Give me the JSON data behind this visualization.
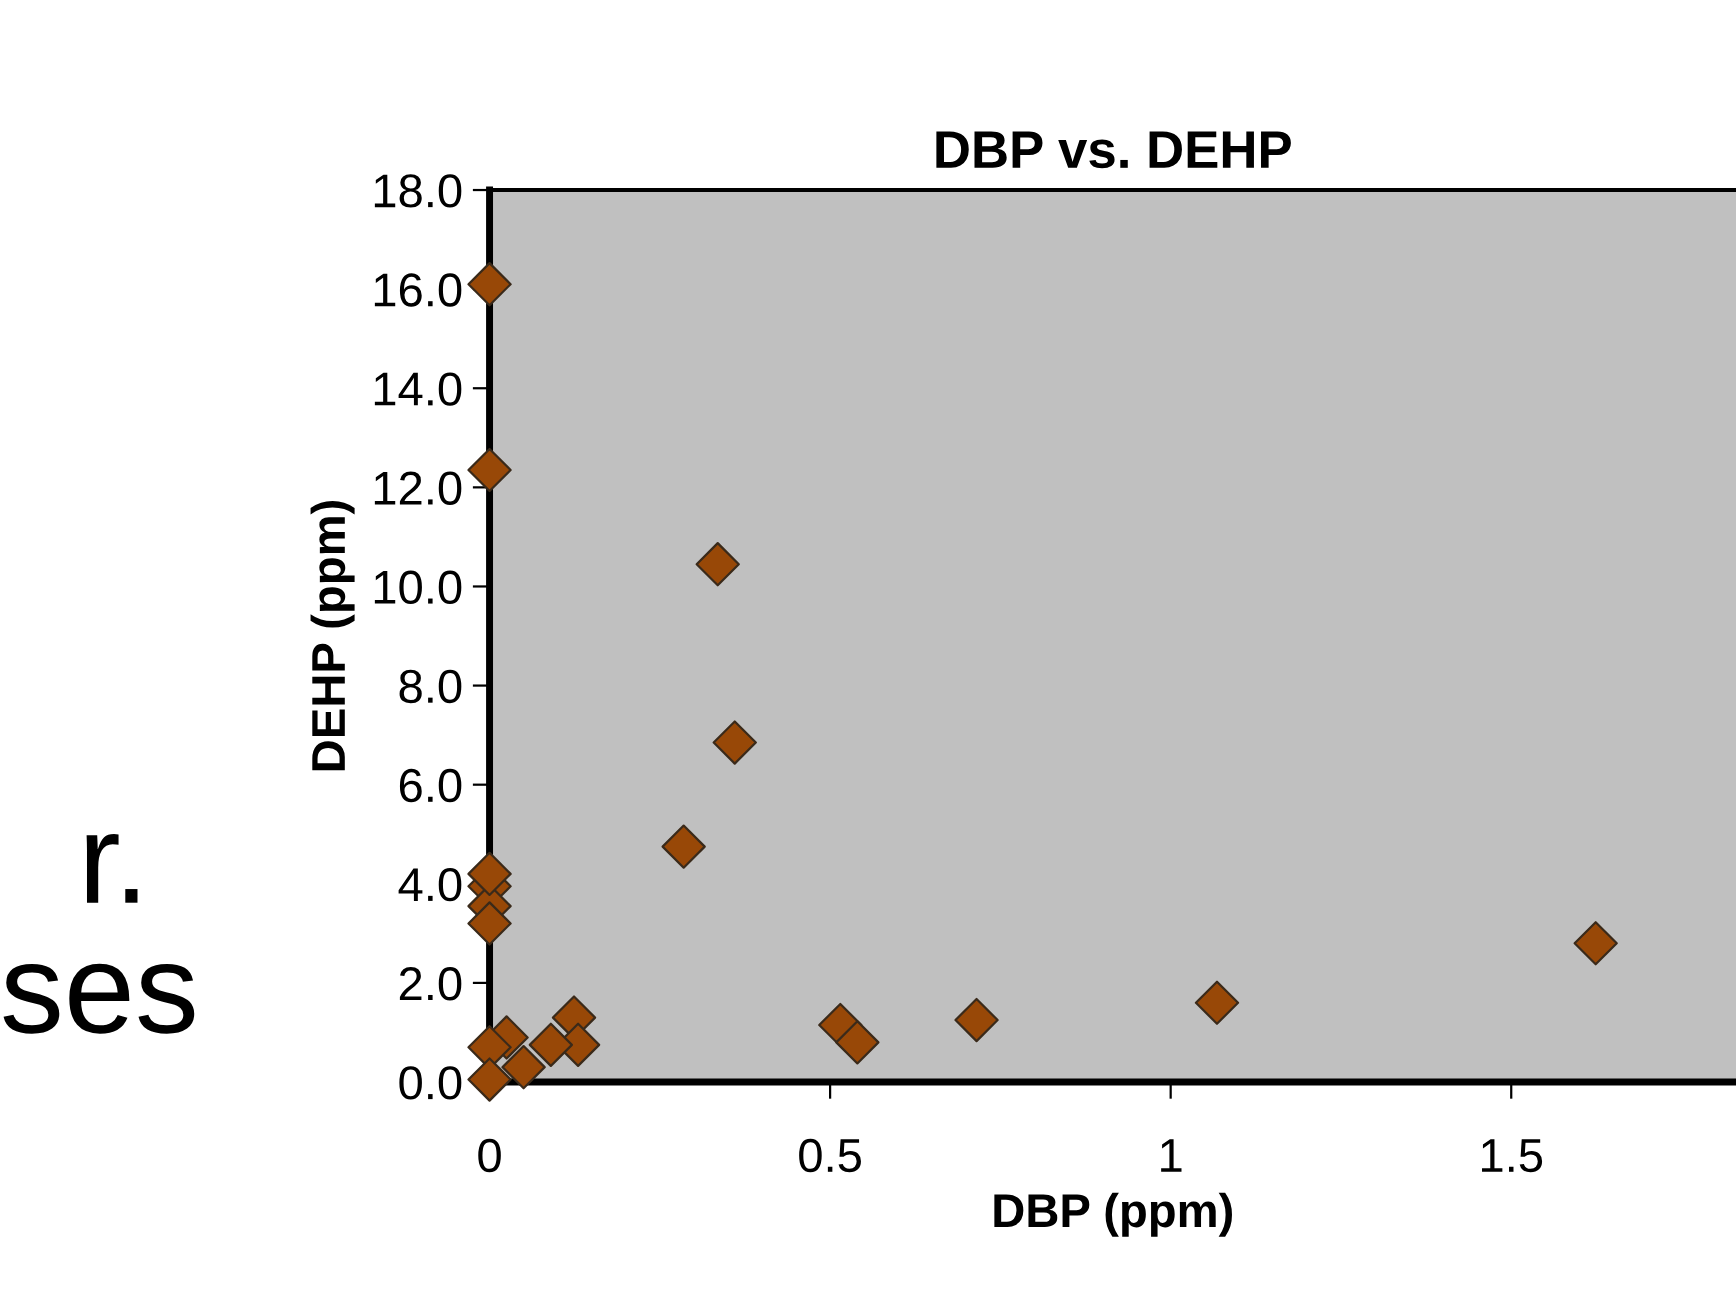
{
  "chart_data": {
    "type": "scatter",
    "title": "DBP vs. DEHP",
    "xlabel": "DBP (ppm)",
    "ylabel": "DEHP (ppm)",
    "x": [
      0,
      0,
      0.335,
      0.36,
      0.285,
      0,
      0,
      0,
      1.624,
      1.068,
      0.715,
      0.515,
      0.54,
      0.124,
      0.13,
      0.09,
      0.025,
      0,
      0.05,
      0,
      0
    ],
    "series": [
      {
        "color": "#984807",
        "values": [
          16.1,
          12.35,
          10.45,
          6.85,
          4.75,
          3.95,
          3.55,
          3.2,
          2.8,
          1.6,
          1.25,
          1.15,
          0.8,
          1.3,
          0.75,
          0.75,
          0.9,
          0.7,
          0.3,
          0.05,
          4.2
        ]
      }
    ],
    "marker": "diamond",
    "grid": false,
    "legend": false,
    "xlim": [
      0,
      1.83
    ],
    "xticks": [
      0,
      0.5,
      1,
      1.5
    ],
    "ylim": [
      0,
      18
    ],
    "yticks": [
      {
        "value": 0,
        "label": "0.0"
      },
      {
        "value": 2,
        "label": "2.0"
      },
      {
        "value": 4,
        "label": "4.0"
      },
      {
        "value": 6,
        "label": "6.0"
      },
      {
        "value": 8,
        "label": "8.0"
      },
      {
        "value": 10,
        "label": "10.0"
      },
      {
        "value": 12,
        "label": "12.0"
      },
      {
        "value": 14,
        "label": "14.0"
      },
      {
        "value": 16,
        "label": "16.0"
      },
      {
        "value": 18,
        "label": "18.0"
      }
    ],
    "annotations": [
      "r.",
      "ses"
    ]
  }
}
